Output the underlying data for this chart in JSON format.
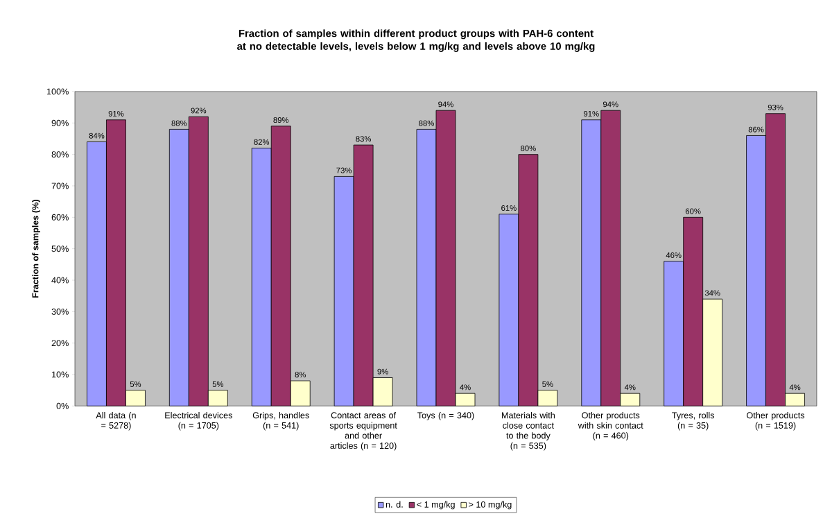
{
  "chart_data": {
    "type": "bar",
    "title": "Fraction of samples within different product groups with PAH-6 content at no detectable levels, levels below 1 mg/kg and levels above 10 mg/kg",
    "ylabel": "Fraction of samples (%)",
    "categories": [
      "All data (n = 5278)",
      "Electrical devices (n = 1705)",
      "Grips, handles (n = 541)",
      "Contact areas of sports equipment and other articles (n = 120)",
      "Toys (n = 340)",
      "Materials with close contact to the body (n = 535)",
      "Other products with skin contact (n = 460)",
      "Tyres, rolls (n = 35)",
      "Other products (n = 1519)"
    ],
    "series": [
      {
        "name": "n. d.",
        "color": "#9999ff",
        "values": [
          84,
          88,
          82,
          73,
          88,
          61,
          91,
          46,
          86
        ],
        "value_labels": [
          "84%",
          "88%",
          "82%",
          "73%",
          "88%",
          "61%",
          "91%",
          "46%",
          "86%"
        ]
      },
      {
        "name": "< 1 mg/kg",
        "color": "#993366",
        "values": [
          91,
          92,
          89,
          83,
          94,
          80,
          94,
          60,
          93
        ],
        "value_labels": [
          "91%",
          "92%",
          "89%",
          "83%",
          "94%",
          "80%",
          "94%",
          "60%",
          "93%"
        ]
      },
      {
        "name": "> 10 mg/kg",
        "color": "#ffffcc",
        "values": [
          5,
          5,
          8,
          9,
          4,
          5,
          4,
          34,
          4
        ],
        "value_labels": [
          "5%",
          "5%",
          "8%",
          "9%",
          "4%",
          "5%",
          "4%",
          "34%",
          "4%"
        ]
      }
    ],
    "ylim": [
      0,
      100
    ],
    "yticks": [
      {
        "value": 0,
        "label": "0%"
      },
      {
        "value": 10,
        "label": "10%"
      },
      {
        "value": 20,
        "label": "20%"
      },
      {
        "value": 30,
        "label": "30%"
      },
      {
        "value": 40,
        "label": "40%"
      },
      {
        "value": 50,
        "label": "50%"
      },
      {
        "value": 60,
        "label": "60%"
      },
      {
        "value": 70,
        "label": "70%"
      },
      {
        "value": 80,
        "label": "80%"
      },
      {
        "value": 90,
        "label": "90%"
      },
      {
        "value": 100,
        "label": "100%"
      }
    ],
    "legend": "bottom"
  }
}
